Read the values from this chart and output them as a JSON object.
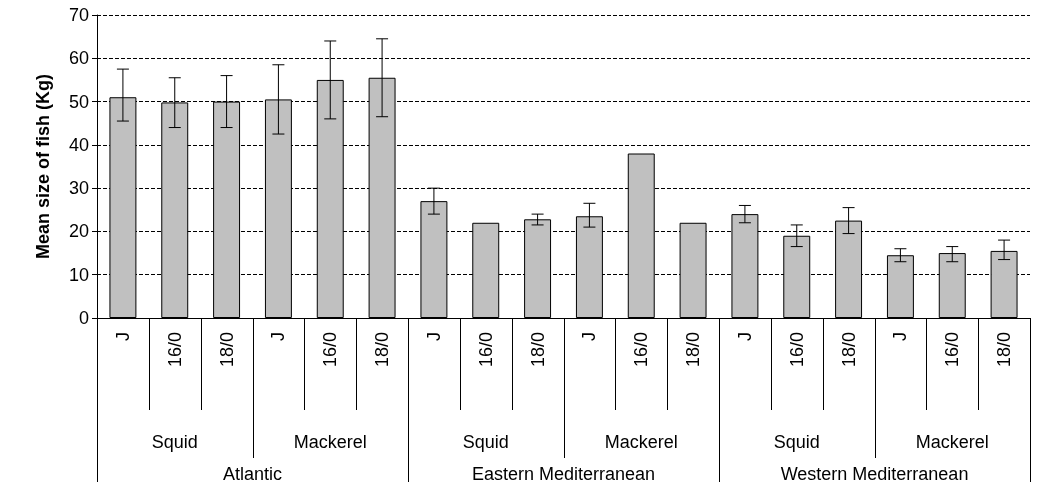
{
  "chart_data": {
    "type": "bar",
    "ylabel": "Mean size of fish (Kg)",
    "categories": [
      "J",
      "16/0",
      "18/0",
      "J",
      "16/0",
      "18/0",
      "J",
      "16/0",
      "18/0",
      "J",
      "16/0",
      "18/0",
      "J",
      "16/0",
      "18/0",
      "J",
      "16/0",
      "18/0"
    ],
    "values": [
      51,
      49.8,
      50,
      50.5,
      55,
      55.5,
      27,
      22,
      22.8,
      23.5,
      38,
      22,
      24,
      19,
      22.5,
      14.5,
      15,
      15.5
    ],
    "errors": [
      [
        45.5,
        57.5
      ],
      [
        44,
        55.5
      ],
      [
        44,
        56
      ],
      [
        42.5,
        58.5
      ],
      [
        46,
        64
      ],
      [
        46.5,
        64.5
      ],
      [
        24,
        30
      ],
      null,
      [
        21.5,
        24
      ],
      [
        21,
        26.5
      ],
      null,
      null,
      [
        22,
        26
      ],
      [
        16.5,
        21.5
      ],
      [
        19.5,
        25.5
      ],
      [
        13,
        16
      ],
      [
        13,
        16.5
      ],
      [
        13.5,
        18
      ]
    ],
    "color": "#c0c0c0",
    "annotations": [
      "Squid",
      "Mackerel",
      "Squid",
      "Mackerel",
      "Squid",
      "Mackerel",
      "Atlantic",
      "Eastern Mediterranean",
      "Western Mediterranean"
    ],
    "ylim": [
      0,
      70
    ],
    "yticks": [
      0,
      10,
      20,
      30,
      40,
      50,
      60,
      70
    ],
    "grid": "y"
  }
}
